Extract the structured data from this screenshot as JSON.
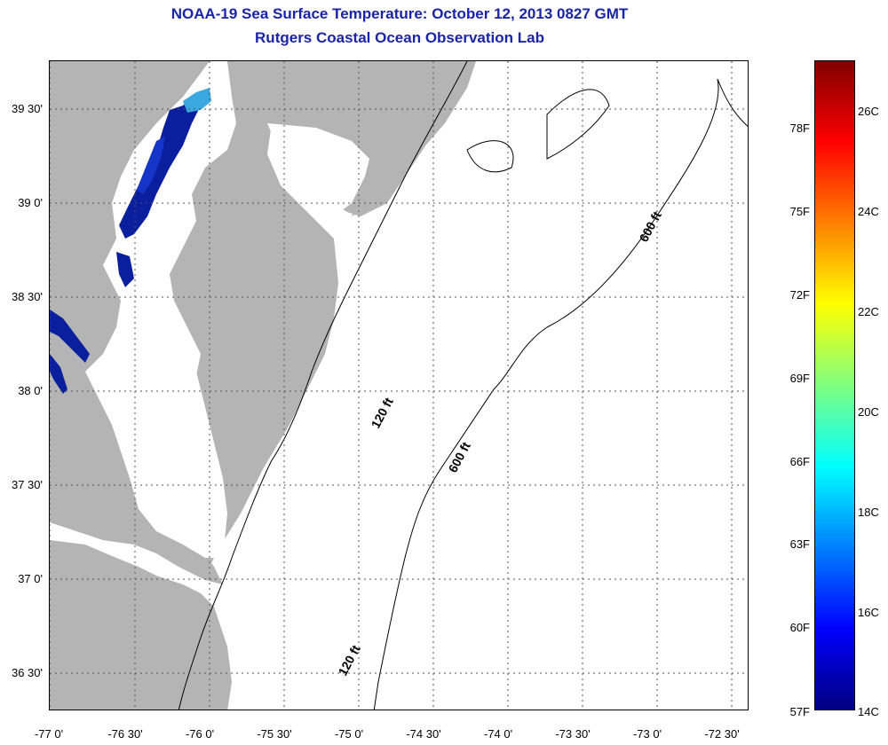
{
  "title": {
    "line1": "NOAA-19 Sea Surface Temperature:  October 12, 2013 0827 GMT",
    "line2": "Rutgers Coastal Ocean Observation Lab"
  },
  "map": {
    "lat_ticks": [
      "39 30'",
      "39 0'",
      "38 30'",
      "38 0'",
      "37 30'",
      "37 0'",
      "36 30'"
    ],
    "lon_ticks": [
      "-77 0'",
      "-76 30'",
      "-76 0'",
      "-75 30'",
      "-75 0'",
      "-74 30'",
      "-74 0'",
      "-73 30'",
      "-73 0'",
      "-72 30'"
    ],
    "contour_labels": [
      "600 ft",
      "120 ft",
      "600 ft",
      "120 ft"
    ],
    "land_color": "#b4b4b4",
    "cloud_color": "#ffffff"
  },
  "colorbar": {
    "fahrenheit_ticks": [
      "78F",
      "75F",
      "72F",
      "69F",
      "66F",
      "63F",
      "60F",
      "57F"
    ],
    "celsius_ticks": [
      "26C",
      "24C",
      "22C",
      "20C",
      "18C",
      "16C",
      "14C"
    ],
    "colors": [
      "#800000",
      "#ff0000",
      "#ff8000",
      "#ffff00",
      "#80ff80",
      "#00ffff",
      "#0080ff",
      "#0000ff",
      "#000080"
    ]
  }
}
